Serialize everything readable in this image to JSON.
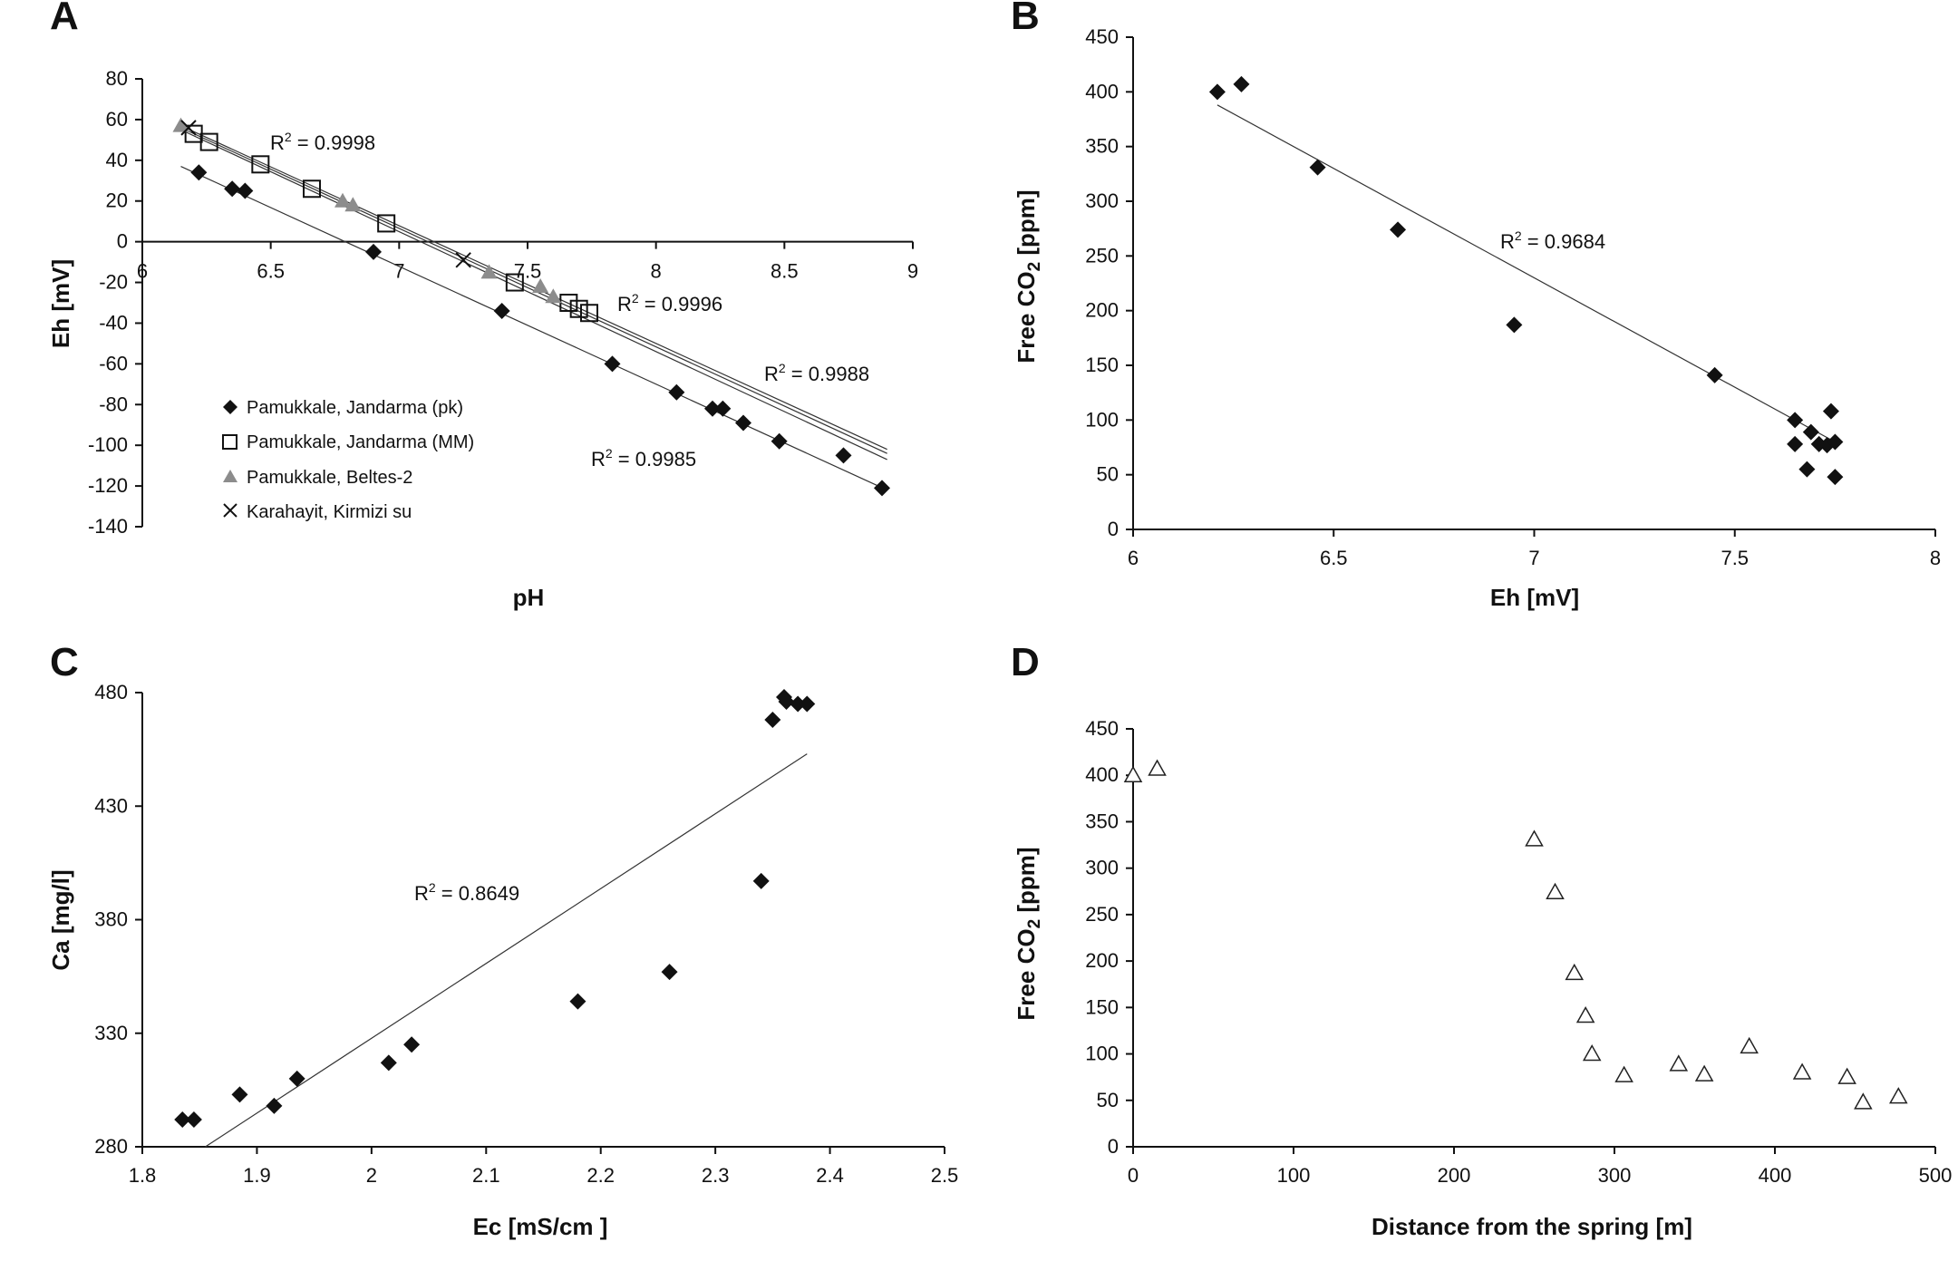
{
  "chart_data": [
    {
      "panel": "A",
      "type": "scatter",
      "xlabel": "pH",
      "ylabel": "Eh [mV]",
      "xlim": [
        6,
        9
      ],
      "ylim": [
        -140,
        80
      ],
      "xticks": [
        6,
        6.5,
        7,
        7.5,
        8,
        8.5,
        9
      ],
      "yticks": [
        -140,
        -120,
        -100,
        -80,
        -60,
        -40,
        -20,
        0,
        20,
        40,
        60,
        80
      ],
      "legend_position": "lower-left",
      "series": [
        {
          "name": "Pamukkale, Jandarma (pk)",
          "marker": "diamond-filled",
          "x": [
            6.22,
            6.35,
            6.4,
            6.9,
            7.4,
            7.83,
            8.08,
            8.22,
            8.26,
            8.34,
            8.48,
            8.73,
            8.88
          ],
          "y": [
            34,
            26,
            25,
            -5,
            -34,
            -60,
            -74,
            -82,
            -82,
            -89,
            -98,
            -105,
            -121
          ]
        },
        {
          "name": "Pamukkale, Jandarma (MM)",
          "marker": "square-open",
          "x": [
            6.2,
            6.26,
            6.46,
            6.66,
            6.95,
            7.45,
            7.66,
            7.7,
            7.74
          ],
          "y": [
            53,
            49,
            38,
            26,
            9,
            -20,
            -30,
            -33,
            -35
          ]
        },
        {
          "name": "Pamukkale, Beltes-2",
          "marker": "triangle-gray",
          "x": [
            6.15,
            6.78,
            6.82,
            7.35,
            7.55,
            7.6
          ],
          "y": [
            57,
            20,
            18,
            -15,
            -22,
            -27
          ]
        },
        {
          "name": "Karahayit, Kirmizi su",
          "marker": "x",
          "x": [
            6.18,
            7.25
          ],
          "y": [
            56,
            -9
          ]
        }
      ],
      "trendlines": [
        {
          "x": [
            6.15,
            8.9
          ],
          "y": [
            57,
            -102
          ]
        },
        {
          "x": [
            6.15,
            8.9
          ],
          "y": [
            56,
            -104
          ]
        },
        {
          "x": [
            6.15,
            8.9
          ],
          "y": [
            55,
            -107
          ]
        },
        {
          "x": [
            6.15,
            8.9
          ],
          "y": [
            37,
            -122
          ]
        }
      ],
      "annotations": [
        "R2 = 0.9998",
        "R2 = 0.9996",
        "R2 = 0.9988",
        "R2 = 0.9985"
      ]
    },
    {
      "panel": "B",
      "type": "scatter",
      "xlabel": "Eh [mV]",
      "ylabel": "Free CO2 [ppm]",
      "xlim": [
        6,
        8
      ],
      "ylim": [
        0,
        450
      ],
      "xticks": [
        6,
        6.5,
        7,
        7.5,
        8
      ],
      "yticks": [
        0,
        50,
        100,
        150,
        200,
        250,
        300,
        350,
        400,
        450
      ],
      "series": [
        {
          "marker": "diamond-filled",
          "x": [
            6.21,
            6.27,
            6.46,
            6.66,
            6.95,
            7.45,
            7.65,
            7.65,
            7.68,
            7.69,
            7.71,
            7.73,
            7.74,
            7.75,
            7.75
          ],
          "y": [
            400,
            407,
            331,
            274,
            187,
            141,
            100,
            78,
            55,
            89,
            78,
            77,
            108,
            80,
            48
          ]
        }
      ],
      "trendlines": [
        {
          "x": [
            6.21,
            7.75
          ],
          "y": [
            388,
            80
          ]
        }
      ],
      "annotations": [
        "R2 = 0.9684"
      ]
    },
    {
      "panel": "C",
      "type": "scatter",
      "xlabel": "Ec [mS/cm ]",
      "ylabel": "Ca [mg/l]",
      "xlim": [
        1.8,
        2.5
      ],
      "ylim": [
        280,
        480
      ],
      "xticks": [
        1.8,
        1.9,
        2,
        2.1,
        2.2,
        2.3,
        2.4,
        2.5
      ],
      "yticks": [
        280,
        330,
        380,
        430,
        480
      ],
      "series": [
        {
          "marker": "diamond-filled",
          "x": [
            1.835,
            1.845,
            1.885,
            1.915,
            1.935,
            2.015,
            2.035,
            2.18,
            2.26,
            2.34,
            2.35,
            2.36,
            2.362,
            2.372,
            2.38
          ],
          "y": [
            292,
            292,
            303,
            298,
            310,
            317,
            325,
            344,
            357,
            397,
            468,
            478,
            476,
            475,
            475
          ]
        }
      ],
      "trendlines": [
        {
          "x": [
            1.855,
            2.38
          ],
          "y": [
            280,
            453
          ]
        }
      ],
      "annotations": [
        "R2 = 0.8649"
      ]
    },
    {
      "panel": "D",
      "type": "scatter",
      "xlabel": "Distance from the spring [m]",
      "ylabel": "Free CO2 [ppm]",
      "xlim": [
        0,
        500
      ],
      "ylim": [
        0,
        450
      ],
      "xticks": [
        0,
        100,
        200,
        300,
        400,
        500
      ],
      "yticks": [
        0,
        50,
        100,
        150,
        200,
        250,
        300,
        350,
        400,
        450
      ],
      "series": [
        {
          "marker": "triangle-open",
          "x": [
            0,
            15,
            250,
            263,
            275,
            282,
            286,
            306,
            340,
            356,
            384,
            417,
            445,
            455,
            477
          ],
          "y": [
            400,
            407,
            331,
            274,
            187,
            141,
            100,
            77,
            89,
            78,
            108,
            80,
            75,
            48,
            54
          ]
        }
      ]
    }
  ]
}
